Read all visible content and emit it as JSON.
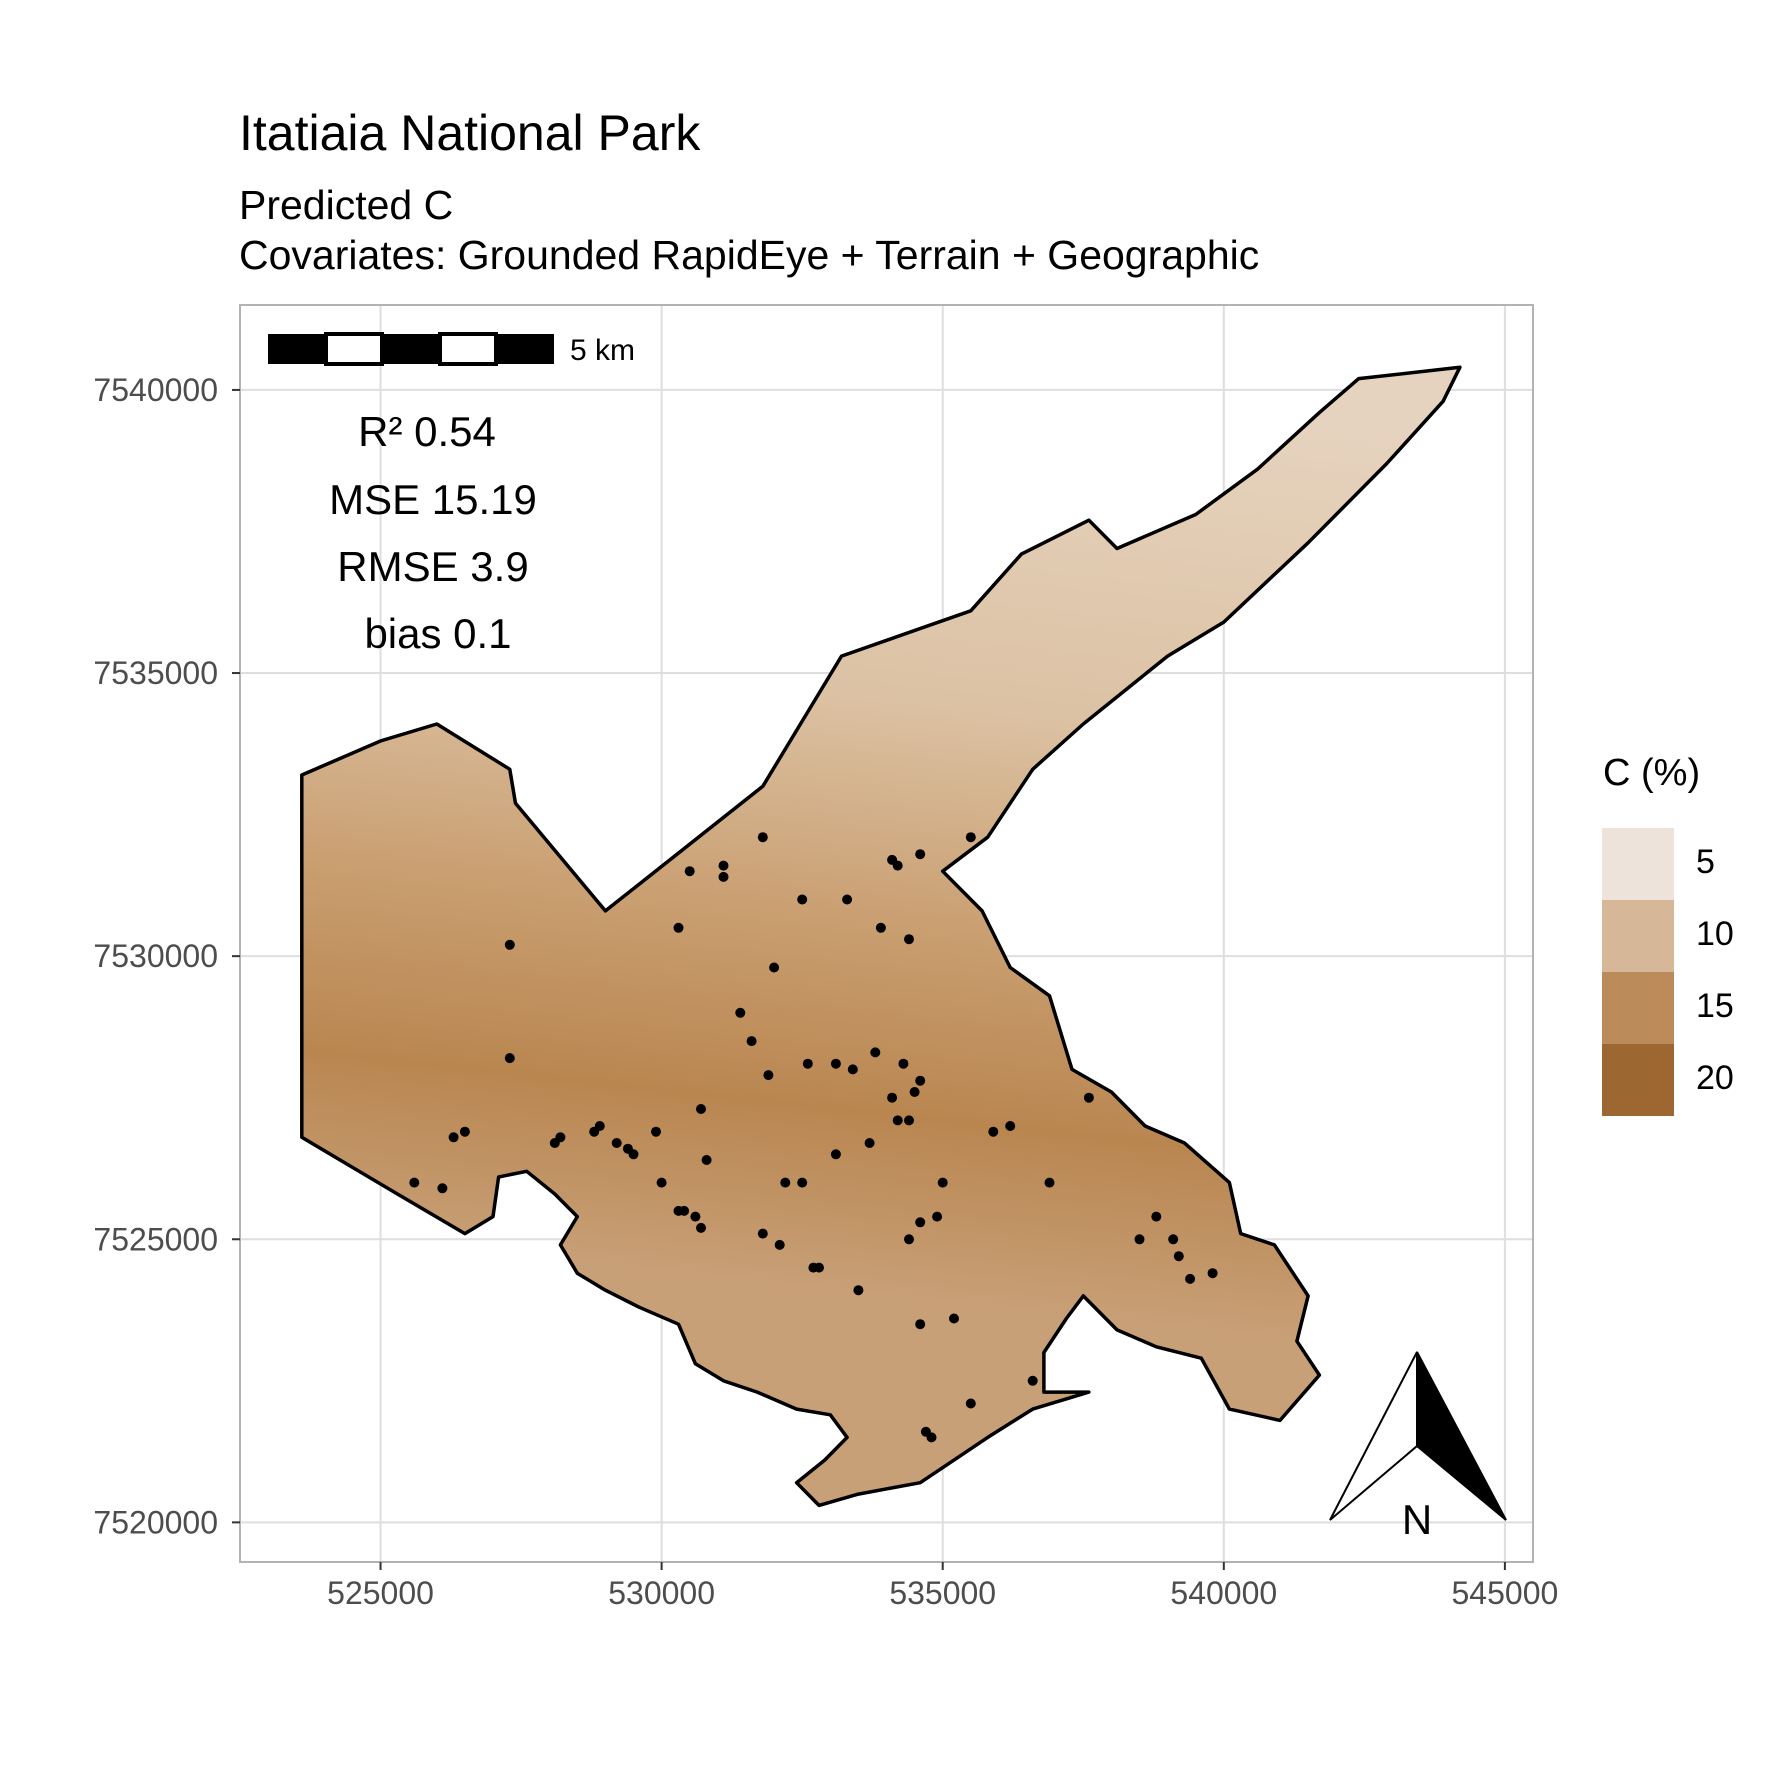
{
  "title": "Itatiaia National Park",
  "subtitle_line1": "Predicted C",
  "subtitle_line2": "Covariates: Grounded RapidEye + Terrain + Geographic",
  "stats": [
    "R² 0.54",
    "MSE 15.19",
    "RMSE 3.9",
    "bias 0.1"
  ],
  "scale_bar": {
    "label": "5 km"
  },
  "north_arrow": {
    "label": "N"
  },
  "legend": {
    "title": "C (%)",
    "items": [
      {
        "label": "5",
        "color": "#eee3da"
      },
      {
        "label": "10",
        "color": "#d6b899"
      },
      {
        "label": "15",
        "color": "#bb8c5a"
      },
      {
        "label": "20",
        "color": "#9c6730"
      }
    ]
  },
  "chart_data": {
    "type": "scatter",
    "title": "Itatiaia National Park",
    "subtitle": "Predicted C / Covariates: Grounded RapidEye + Terrain + Geographic",
    "xlim": [
      522500,
      545500
    ],
    "ylim": [
      7519300,
      7541500
    ],
    "x_ticks": [
      "525000",
      "530000",
      "535000",
      "540000",
      "545000"
    ],
    "y_ticks": [
      "7520000",
      "7525000",
      "7530000",
      "7535000",
      "7540000"
    ],
    "grid": true,
    "legend_position": "right",
    "fill_scale": {
      "name": "C (%)",
      "breaks": [
        5,
        10,
        15,
        20
      ]
    },
    "boundary": [
      [
        523600,
        7533200
      ],
      [
        525000,
        7533800
      ],
      [
        526000,
        7534100
      ],
      [
        527300,
        7533300
      ],
      [
        527400,
        7532700
      ],
      [
        529000,
        7530800
      ],
      [
        531800,
        7533000
      ],
      [
        533200,
        7535300
      ],
      [
        535500,
        7536100
      ],
      [
        536400,
        7537100
      ],
      [
        537600,
        7537700
      ],
      [
        538100,
        7537200
      ],
      [
        539500,
        7537800
      ],
      [
        540600,
        7538600
      ],
      [
        541700,
        7539600
      ],
      [
        542400,
        7540200
      ],
      [
        544200,
        7540400
      ],
      [
        543900,
        7539800
      ],
      [
        542900,
        7538700
      ],
      [
        541500,
        7537300
      ],
      [
        540000,
        7535900
      ],
      [
        539000,
        7535300
      ],
      [
        537500,
        7534100
      ],
      [
        536600,
        7533300
      ],
      [
        535800,
        7532100
      ],
      [
        535000,
        7531500
      ],
      [
        535700,
        7530800
      ],
      [
        536200,
        7529800
      ],
      [
        536900,
        7529300
      ],
      [
        537300,
        7528000
      ],
      [
        538000,
        7527600
      ],
      [
        538600,
        7527000
      ],
      [
        539300,
        7526700
      ],
      [
        540100,
        7526000
      ],
      [
        540300,
        7525100
      ],
      [
        540900,
        7524900
      ],
      [
        541500,
        7524000
      ],
      [
        541300,
        7523200
      ],
      [
        541700,
        7522600
      ],
      [
        541000,
        7521800
      ],
      [
        540100,
        7522000
      ],
      [
        539600,
        7522900
      ],
      [
        538800,
        7523100
      ],
      [
        538100,
        7523400
      ],
      [
        537500,
        7524000
      ],
      [
        537200,
        7523600
      ],
      [
        536800,
        7523000
      ],
      [
        536800,
        7522300
      ],
      [
        537600,
        7522300
      ],
      [
        536600,
        7522000
      ],
      [
        535800,
        7521500
      ],
      [
        535200,
        7521100
      ],
      [
        534600,
        7520700
      ],
      [
        533500,
        7520500
      ],
      [
        532800,
        7520300
      ],
      [
        532400,
        7520700
      ],
      [
        532900,
        7521100
      ],
      [
        533300,
        7521500
      ],
      [
        533000,
        7521900
      ],
      [
        532400,
        7522000
      ],
      [
        531700,
        7522300
      ],
      [
        531100,
        7522500
      ],
      [
        530600,
        7522800
      ],
      [
        530300,
        7523500
      ],
      [
        529600,
        7523800
      ],
      [
        529000,
        7524100
      ],
      [
        528500,
        7524400
      ],
      [
        528200,
        7524900
      ],
      [
        528500,
        7525400
      ],
      [
        528100,
        7525800
      ],
      [
        527600,
        7526200
      ],
      [
        527100,
        7526100
      ],
      [
        527000,
        7525400
      ],
      [
        526500,
        7525100
      ],
      [
        525300,
        7525800
      ],
      [
        523600,
        7526800
      ]
    ],
    "sample_points": [
      [
        531800,
        7532100
      ],
      [
        531100,
        7531600
      ],
      [
        531100,
        7531400
      ],
      [
        530500,
        7531500
      ],
      [
        534100,
        7531700
      ],
      [
        534200,
        7531600
      ],
      [
        534600,
        7531800
      ],
      [
        535500,
        7532100
      ],
      [
        532500,
        7531000
      ],
      [
        533300,
        7531000
      ],
      [
        530300,
        7530500
      ],
      [
        533900,
        7530500
      ],
      [
        534400,
        7530300
      ],
      [
        527300,
        7530200
      ],
      [
        532000,
        7529800
      ],
      [
        531400,
        7529000
      ],
      [
        531600,
        7528500
      ],
      [
        527300,
        7528200
      ],
      [
        532600,
        7528100
      ],
      [
        533100,
        7528100
      ],
      [
        533400,
        7528000
      ],
      [
        533800,
        7528300
      ],
      [
        534300,
        7528100
      ],
      [
        531900,
        7527900
      ],
      [
        534600,
        7527800
      ],
      [
        534500,
        7527600
      ],
      [
        534100,
        7527500
      ],
      [
        537600,
        7527500
      ],
      [
        530700,
        7527300
      ],
      [
        534200,
        7527100
      ],
      [
        534400,
        7527100
      ],
      [
        536200,
        7527000
      ],
      [
        535900,
        7526900
      ],
      [
        526500,
        7526900
      ],
      [
        528800,
        7526900
      ],
      [
        528900,
        7527000
      ],
      [
        529900,
        7526900
      ],
      [
        526300,
        7526800
      ],
      [
        528100,
        7526700
      ],
      [
        528200,
        7526800
      ],
      [
        529200,
        7526700
      ],
      [
        529400,
        7526600
      ],
      [
        529500,
        7526500
      ],
      [
        533700,
        7526700
      ],
      [
        533100,
        7526500
      ],
      [
        530800,
        7526400
      ],
      [
        525600,
        7526000
      ],
      [
        526100,
        7525900
      ],
      [
        530000,
        7526000
      ],
      [
        532200,
        7526000
      ],
      [
        532500,
        7526000
      ],
      [
        535000,
        7526000
      ],
      [
        536900,
        7526000
      ],
      [
        530300,
        7525500
      ],
      [
        530400,
        7525500
      ],
      [
        530600,
        7525400
      ],
      [
        534900,
        7525400
      ],
      [
        534600,
        7525300
      ],
      [
        530700,
        7525200
      ],
      [
        531800,
        7525100
      ],
      [
        534400,
        7525000
      ],
      [
        538800,
        7525400
      ],
      [
        538500,
        7525000
      ],
      [
        539100,
        7525000
      ],
      [
        532100,
        7524900
      ],
      [
        539200,
        7524700
      ],
      [
        539800,
        7524400
      ],
      [
        532700,
        7524500
      ],
      [
        532800,
        7524500
      ],
      [
        539400,
        7524300
      ],
      [
        533500,
        7524100
      ],
      [
        535200,
        7523600
      ],
      [
        534600,
        7523500
      ],
      [
        536600,
        7522500
      ],
      [
        535500,
        7522100
      ],
      [
        534700,
        7521600
      ],
      [
        534800,
        7521500
      ]
    ]
  }
}
